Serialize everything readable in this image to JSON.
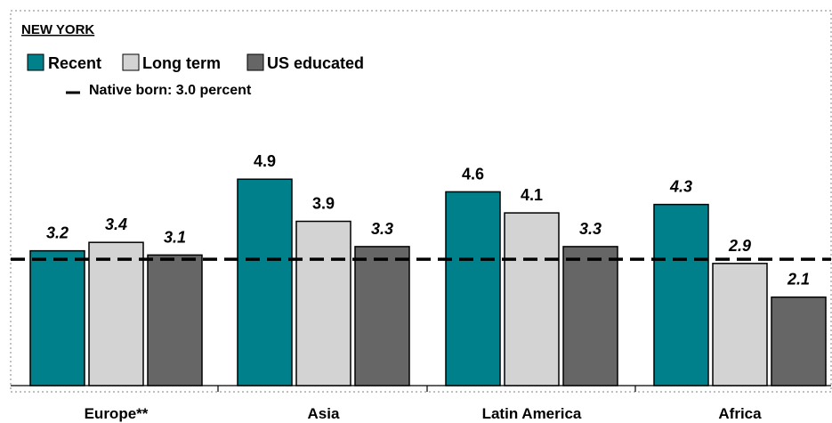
{
  "region_title": "NEW YORK",
  "legend": {
    "items": [
      {
        "label": "Recent",
        "color": "#00808a"
      },
      {
        "label": "Long term",
        "color": "#d3d3d3"
      },
      {
        "label": "US educated",
        "color": "#666666"
      }
    ],
    "reference_label": "Native born: 3.0 percent"
  },
  "chart_data": {
    "type": "bar",
    "categories": [
      "Europe**",
      "Asia",
      "Latin America",
      "Africa"
    ],
    "series": [
      {
        "name": "Recent",
        "values": [
          3.2,
          4.9,
          4.6,
          4.3
        ],
        "color": "#00808a"
      },
      {
        "name": "Long term",
        "values": [
          3.4,
          3.9,
          4.1,
          2.9
        ],
        "color": "#d3d3d3"
      },
      {
        "name": "US educated",
        "values": [
          3.1,
          3.3,
          3.3,
          2.1
        ],
        "color": "#666666"
      }
    ],
    "value_labels": [
      [
        "3.2",
        "3.4",
        "3.1"
      ],
      [
        "4.9",
        "3.9",
        "3.3"
      ],
      [
        "4.6",
        "4.1",
        "3.3"
      ],
      [
        "4.3",
        "2.9",
        "2.1"
      ]
    ],
    "italic_labels": [
      [
        true,
        true,
        true
      ],
      [
        false,
        false,
        true
      ],
      [
        false,
        false,
        true
      ],
      [
        true,
        true,
        true
      ]
    ],
    "reference_line": {
      "label": "Native born: 3.0 percent",
      "value": 3.0
    },
    "ylim": [
      0,
      6.1
    ],
    "grid": false,
    "legend_position": "top-left"
  }
}
